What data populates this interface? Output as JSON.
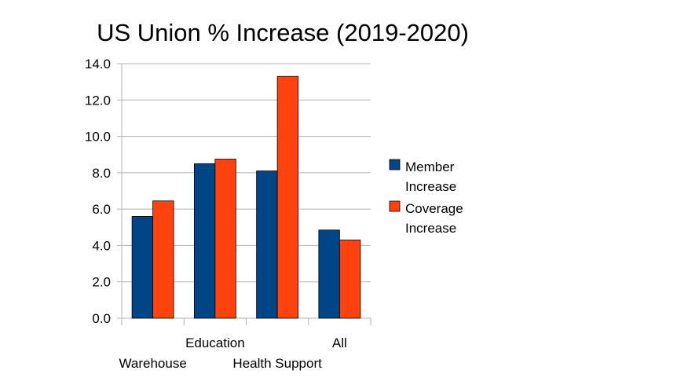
{
  "chart_data": {
    "type": "bar",
    "title": "US Union % Increase (2019-2020)",
    "xlabel": "",
    "ylabel": "",
    "categories": [
      "Warehouse",
      "Education",
      "Health Support",
      "All"
    ],
    "series": [
      {
        "name": "Member Increase",
        "values": [
          5.6,
          8.5,
          8.1,
          4.85
        ],
        "color": "#004586"
      },
      {
        "name": "Coverage Increase",
        "values": [
          6.45,
          8.75,
          13.3,
          4.3
        ],
        "color": "#ff420e"
      }
    ],
    "ylim": [
      0,
      14
    ],
    "yticks": [
      "0.0",
      "2.0",
      "4.0",
      "6.0",
      "8.0",
      "10.0",
      "12.0",
      "14.0"
    ],
    "grid": true,
    "legend_position": "right",
    "legend_lines": [
      [
        "Member",
        "Increase"
      ],
      [
        "Coverage",
        "Increase"
      ]
    ]
  }
}
